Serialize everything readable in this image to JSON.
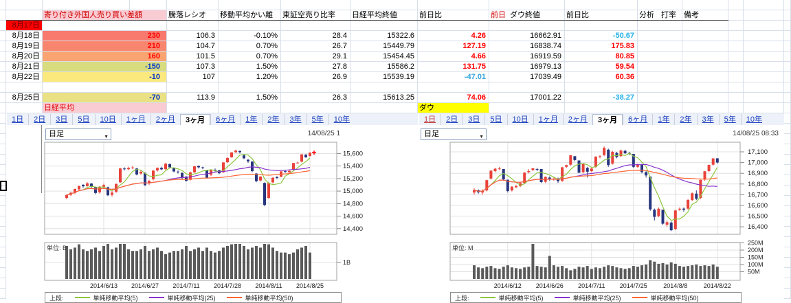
{
  "sheet": {
    "grid_color": "#d8dfea",
    "header": {
      "foreign_diff": "寄り付き外国人売り買い差額",
      "ratio": "騰落レシオ",
      "ma_dev": "移動平均かい離",
      "short_ratio": "東証空売り比率",
      "nikkei_close": "日経平均終値",
      "day_chg": "前日比",
      "prev_label": "前日",
      "dow_close": "ダウ終値",
      "day_chg2": "前日比",
      "analysis": "分析",
      "rate": "打率",
      "note": "備考",
      "header_pink": "#f9cbd2",
      "header_red": "#d00000"
    },
    "rows": [
      {
        "date": "8月17日",
        "date_bg": "#ff0000",
        "date_color": "#6b0000"
      },
      {
        "date": "8月18日",
        "foreign": "230",
        "foreign_bg": "#f87a6e",
        "foreign_color": "#ff0000",
        "ratio": "106.3",
        "ma_dev": "-0.10%",
        "short_ratio": "28.4",
        "nikkei": "15322.6",
        "nikkei_chg": "4.26",
        "nikkei_chg_color": "#ff0000",
        "dow": "16662.91",
        "dow_chg": "-50.67",
        "dow_chg_color": "#25b2e8"
      },
      {
        "date": "8月19日",
        "foreign": "210",
        "foreign_bg": "#f8866e",
        "foreign_color": "#ff0000",
        "ratio": "104.7",
        "ma_dev": "0.70%",
        "short_ratio": "26.7",
        "nikkei": "15449.79",
        "nikkei_chg": "127.19",
        "nikkei_chg_color": "#ff0000",
        "dow": "16838.74",
        "dow_chg": "175.83",
        "dow_chg_color": "#ff0000"
      },
      {
        "date": "8月20日",
        "foreign": "160",
        "foreign_bg": "#faa471",
        "foreign_color": "#ff0000",
        "ratio": "101.5",
        "ma_dev": "0.70%",
        "short_ratio": "29.1",
        "nikkei": "15454.45",
        "nikkei_chg": "4.66",
        "nikkei_chg_color": "#ff0000",
        "dow": "16919.59",
        "dow_chg": "80.85",
        "dow_chg_color": "#ff0000"
      },
      {
        "date": "8月21日",
        "foreign": "-150",
        "foreign_bg": "#d8dc7e",
        "foreign_color": "#0033cc",
        "ratio": "107.3",
        "ma_dev": "1.50%",
        "short_ratio": "27.8",
        "nikkei": "15586.2",
        "nikkei_chg": "131.75",
        "nikkei_chg_color": "#ff0000",
        "dow": "16979.13",
        "dow_chg": "59.54",
        "dow_chg_color": "#ff0000"
      },
      {
        "date": "8月22日",
        "foreign": "-10",
        "foreign_bg": "#fbe97e",
        "foreign_color": "#0033cc",
        "ratio": "107",
        "ma_dev": "1.20%",
        "short_ratio": "26.9",
        "nikkei": "15539.19",
        "nikkei_chg": "-47.01",
        "nikkei_chg_color": "#2fa3dc",
        "dow": "17039.49",
        "dow_chg": "60.36",
        "dow_chg_color": "#ff0000"
      },
      {},
      {
        "date": "8月25日",
        "foreign": "-70",
        "foreign_bg": "#eae184",
        "foreign_color": "#0033cc",
        "ratio": "113.9",
        "ma_dev": "1.50%",
        "short_ratio": "26.3",
        "nikkei": "15613.25",
        "nikkei_chg": "74.06",
        "nikkei_chg_color": "#ff0000",
        "dow": "17001.22",
        "dow_chg": "-38.27",
        "dow_chg_color": "#25b2e8"
      }
    ],
    "nikkei_label": "日経平均",
    "nikkei_label_bg": "#f9cbd2",
    "nikkei_label_color": "#e00000",
    "dow_label": "ダウ",
    "dow_label_bg": "#ffff00"
  },
  "tabs": {
    "items": [
      "1日",
      "2日",
      "3日",
      "5日",
      "10日",
      "1ヶ月",
      "2ヶ月",
      "3ヶ月",
      "6ヶ月",
      "1年",
      "2年",
      "3年",
      "5年",
      "10年"
    ],
    "selected": "3ヶ月"
  },
  "chart_data": [
    {
      "type": "candlestick",
      "name": "nikkei-3month-daily",
      "dropdown_label": "日足",
      "timestamp": "14/08/25 1",
      "unit_label": "単位: B",
      "legend_prefix": "上段:",
      "colors": {
        "up": "#e8423a",
        "down": "#27357e",
        "volume": "#5a5a5a"
      },
      "ylim": [
        14310,
        15780
      ],
      "y_ticks": [
        {
          "v": 15600,
          "label": "15,600"
        },
        {
          "v": 15400,
          "label": "15,400"
        },
        {
          "v": 15200,
          "label": "15,200"
        },
        {
          "v": 15000,
          "label": "15,000"
        },
        {
          "v": 14800,
          "label": "14,800"
        },
        {
          "v": 14600,
          "label": "14,600"
        },
        {
          "v": 14400,
          "label": "14,400"
        }
      ],
      "vol_ticks": [
        {
          "v": 1,
          "label": "1B"
        }
      ],
      "x_labels": [
        {
          "i": 9,
          "label": "2014/6/13"
        },
        {
          "i": 19,
          "label": "2014/6/27"
        },
        {
          "i": 29,
          "label": "2014/7/11"
        },
        {
          "i": 39,
          "label": "2014/7/28"
        },
        {
          "i": 49,
          "label": "2014/8/11"
        },
        {
          "i": 59,
          "label": "2014/8/25"
        }
      ],
      "ma": [
        {
          "period": 5,
          "color": "#8cc63e",
          "label": "単純移動平均(5)"
        },
        {
          "period": 25,
          "color": "#8833cc",
          "label": "単純移動平均(25)"
        },
        {
          "period": 50,
          "color": "#ff6633",
          "label": "単純移動平均(50)"
        }
      ],
      "candles": [
        [
          14890,
          14950,
          14870,
          14935
        ],
        [
          14940,
          14990,
          14920,
          14973
        ],
        [
          14970,
          15040,
          14950,
          15034
        ],
        [
          15030,
          15090,
          15010,
          15079
        ],
        [
          15100,
          15110,
          15050,
          15077
        ],
        [
          15080,
          15140,
          15070,
          15124
        ],
        [
          15120,
          15130,
          15050,
          15069
        ],
        [
          15060,
          15070,
          14950,
          14970
        ],
        [
          14980,
          15080,
          14960,
          15069
        ],
        [
          15070,
          15120,
          15040,
          15097
        ],
        [
          15060,
          15070,
          14920,
          14933
        ],
        [
          14940,
          15000,
          14910,
          14976
        ],
        [
          14990,
          15120,
          14970,
          15115
        ],
        [
          15140,
          15370,
          15130,
          15361
        ],
        [
          15360,
          15380,
          15330,
          15349
        ],
        [
          15350,
          15390,
          15330,
          15369
        ],
        [
          15370,
          15400,
          15350,
          15376
        ],
        [
          15360,
          15370,
          15250,
          15266
        ],
        [
          15280,
          15330,
          15260,
          15308
        ],
        [
          15290,
          15300,
          15080,
          15095
        ],
        [
          15120,
          15180,
          15100,
          15162
        ],
        [
          15190,
          15340,
          15170,
          15326
        ],
        [
          15330,
          15380,
          15310,
          15369
        ],
        [
          15370,
          15390,
          15330,
          15348
        ],
        [
          15350,
          15450,
          15340,
          15437
        ],
        [
          15430,
          15440,
          15360,
          15379
        ],
        [
          15370,
          15380,
          15300,
          15314
        ],
        [
          15310,
          15330,
          15280,
          15302
        ],
        [
          15290,
          15300,
          15190,
          15216
        ],
        [
          15230,
          15240,
          15150,
          15164
        ],
        [
          15180,
          15310,
          15170,
          15297
        ],
        [
          15300,
          15400,
          15290,
          15395
        ],
        [
          15400,
          15410,
          15360,
          15379
        ],
        [
          15380,
          15390,
          15350,
          15370
        ],
        [
          15330,
          15340,
          15200,
          15215
        ],
        [
          15260,
          15350,
          15240,
          15343
        ],
        [
          15340,
          15360,
          15310,
          15328
        ],
        [
          15330,
          15340,
          15270,
          15284
        ],
        [
          15300,
          15460,
          15290,
          15457
        ],
        [
          15460,
          15540,
          15450,
          15529
        ],
        [
          15540,
          15620,
          15530,
          15618
        ],
        [
          15620,
          15660,
          15610,
          15646
        ],
        [
          15640,
          15650,
          15600,
          15621
        ],
        [
          15570,
          15580,
          15510,
          15523
        ],
        [
          15500,
          15510,
          15450,
          15474
        ],
        [
          15470,
          15480,
          15300,
          15320
        ],
        [
          15280,
          15290,
          15140,
          15159
        ],
        [
          15170,
          15240,
          15150,
          15232
        ],
        [
          15130,
          15140,
          14760,
          14778
        ],
        [
          14890,
          15140,
          14880,
          15130
        ],
        [
          15140,
          15220,
          15120,
          15213
        ],
        [
          15220,
          15240,
          15190,
          15214
        ],
        [
          15230,
          15320,
          15220,
          15314
        ],
        [
          15320,
          15330,
          15290,
          15318
        ],
        [
          15300,
          15330,
          15290,
          15322
        ],
        [
          15340,
          15450,
          15330,
          15449
        ],
        [
          15450,
          15470,
          15440,
          15454
        ],
        [
          15470,
          15590,
          15460,
          15586
        ],
        [
          15580,
          15590,
          15530,
          15539
        ],
        [
          15560,
          15620,
          15550,
          15613
        ]
      ],
      "volumes": [
        2.0,
        1.8,
        1.9,
        2.1,
        1.8,
        1.7,
        1.8,
        1.9,
        1.7,
        2.0,
        2.2,
        1.8,
        1.9,
        2.4,
        2.2,
        1.8,
        1.7,
        1.7,
        1.8,
        2.0,
        1.7,
        1.8,
        1.9,
        1.7,
        1.5,
        1.6,
        1.7,
        1.7,
        1.8,
        2.0,
        1.7,
        1.8,
        1.9,
        1.7,
        1.9,
        1.7,
        1.6,
        1.7,
        1.9,
        2.0,
        2.1,
        2.3,
        2.2,
        2.0,
        1.8,
        1.9,
        2.0,
        1.9,
        2.4,
        2.1,
        1.9,
        1.7,
        1.6,
        1.6,
        1.5,
        1.6,
        1.8,
        1.9,
        2.0,
        1.6
      ]
    },
    {
      "type": "candlestick",
      "name": "dow-3month-daily",
      "dropdown_label": "日足",
      "timestamp": "14/08/25 08:33",
      "unit_label": "単位: M",
      "legend_prefix": "上段:",
      "colors": {
        "up": "#e8423a",
        "down": "#27357e",
        "volume": "#5a5a5a"
      },
      "ylim": [
        16330,
        17190
      ],
      "y_ticks": [
        {
          "v": 17100,
          "label": "17,100"
        },
        {
          "v": 17000,
          "label": "17,000"
        },
        {
          "v": 16900,
          "label": "16,900"
        },
        {
          "v": 16800,
          "label": "16,800"
        },
        {
          "v": 16700,
          "label": "16,700"
        },
        {
          "v": 16600,
          "label": "16,600"
        },
        {
          "v": 16500,
          "label": "16,500"
        },
        {
          "v": 16400,
          "label": "16,400"
        }
      ],
      "vol_ticks": [
        {
          "v": 250,
          "label": "250M"
        },
        {
          "v": 200,
          "label": "200M"
        },
        {
          "v": 150,
          "label": "150M"
        },
        {
          "v": 100,
          "label": "100M"
        },
        {
          "v": 50,
          "label": "50M"
        }
      ],
      "x_labels": [
        {
          "i": 8,
          "label": "2014/6/12"
        },
        {
          "i": 18,
          "label": "2014/6/26"
        },
        {
          "i": 28,
          "label": "2014/7/11"
        },
        {
          "i": 38,
          "label": "2014/7/25"
        },
        {
          "i": 48,
          "label": "2014/8/8"
        },
        {
          "i": 58,
          "label": "2014/8/22"
        }
      ],
      "ma": [
        {
          "period": 5,
          "color": "#8cc63e",
          "label": "単純移動平均(5)"
        },
        {
          "period": 25,
          "color": "#8833cc",
          "label": "単純移動平均(25)"
        },
        {
          "period": 50,
          "color": "#ff6633",
          "label": "単純移動平均(50)"
        }
      ],
      "candles": [
        [
          16720,
          16760,
          16700,
          16743
        ],
        [
          16740,
          16750,
          16710,
          16722
        ],
        [
          16720,
          16750,
          16700,
          16737
        ],
        [
          16740,
          16840,
          16730,
          16836
        ],
        [
          16850,
          16930,
          16840,
          16924
        ],
        [
          16920,
          16950,
          16910,
          16943
        ],
        [
          16940,
          16960,
          16930,
          16945
        ],
        [
          16940,
          16940,
          16830,
          16843
        ],
        [
          16840,
          16840,
          16720,
          16734
        ],
        [
          16740,
          16780,
          16730,
          16775
        ],
        [
          16770,
          16790,
          16760,
          16781
        ],
        [
          16780,
          16810,
          16770,
          16808
        ],
        [
          16810,
          16910,
          16800,
          16906
        ],
        [
          16910,
          16940,
          16900,
          16921
        ],
        [
          16930,
          16950,
          16920,
          16947
        ],
        [
          16940,
          16950,
          16920,
          16937
        ],
        [
          16940,
          16940,
          16810,
          16818
        ],
        [
          16820,
          16870,
          16810,
          16867
        ],
        [
          16860,
          16870,
          16830,
          16846
        ],
        [
          16840,
          16860,
          16830,
          16851
        ],
        [
          16850,
          16860,
          16810,
          16826
        ],
        [
          16830,
          16960,
          16820,
          16956
        ],
        [
          16960,
          16980,
          16950,
          16976
        ],
        [
          16980,
          17070,
          16970,
          17068
        ],
        [
          17060,
          17060,
          17010,
          17024
        ],
        [
          17020,
          17020,
          16900,
          16906
        ],
        [
          16910,
          16990,
          16900,
          16985
        ],
        [
          16950,
          16960,
          16860,
          16915
        ],
        [
          16920,
          16950,
          16910,
          16944
        ],
        [
          16960,
          17060,
          16950,
          17055
        ],
        [
          17060,
          17070,
          17040,
          17060
        ],
        [
          17070,
          17150,
          17060,
          17138
        ],
        [
          17120,
          17130,
          16960,
          16976
        ],
        [
          16990,
          17110,
          16980,
          17100
        ],
        [
          17090,
          17100,
          17040,
          17051
        ],
        [
          17060,
          17120,
          17050,
          17113
        ],
        [
          17110,
          17120,
          17080,
          17086
        ],
        [
          17090,
          17100,
          17070,
          17083
        ],
        [
          17080,
          17080,
          16950,
          16960
        ],
        [
          16960,
          16990,
          16950,
          16982
        ],
        [
          16980,
          16990,
          16900,
          16912
        ],
        [
          16910,
          16920,
          16860,
          16880
        ],
        [
          16870,
          16870,
          16550,
          16563
        ],
        [
          16560,
          16570,
          16460,
          16493
        ],
        [
          16500,
          16580,
          16490,
          16569
        ],
        [
          16560,
          16560,
          16420,
          16429
        ],
        [
          16420,
          16460,
          16400,
          16443
        ],
        [
          16440,
          16450,
          16360,
          16368
        ],
        [
          16380,
          16560,
          16370,
          16553
        ],
        [
          16560,
          16580,
          16550,
          16569
        ],
        [
          16570,
          16580,
          16540,
          16560
        ],
        [
          16570,
          16660,
          16560,
          16651
        ],
        [
          16650,
          16720,
          16640,
          16713
        ],
        [
          16710,
          16740,
          16650,
          16662
        ],
        [
          16670,
          16840,
          16660,
          16838
        ],
        [
          16840,
          16920,
          16830,
          16919
        ],
        [
          16920,
          16980,
          16910,
          16979
        ],
        [
          16980,
          17040,
          16970,
          17039
        ],
        [
          17040,
          17040,
          16990,
          17001
        ]
      ],
      "volumes": [
        95,
        80,
        75,
        85,
        90,
        75,
        70,
        85,
        95,
        80,
        75,
        70,
        80,
        85,
        265,
        90,
        85,
        80,
        160,
        95,
        85,
        90,
        75,
        60,
        70,
        85,
        80,
        90,
        70,
        80,
        75,
        85,
        95,
        90,
        80,
        75,
        70,
        75,
        90,
        85,
        95,
        100,
        130,
        120,
        105,
        110,
        100,
        115,
        105,
        90,
        85,
        90,
        95,
        100,
        90,
        95,
        90,
        100,
        85
      ]
    }
  ]
}
